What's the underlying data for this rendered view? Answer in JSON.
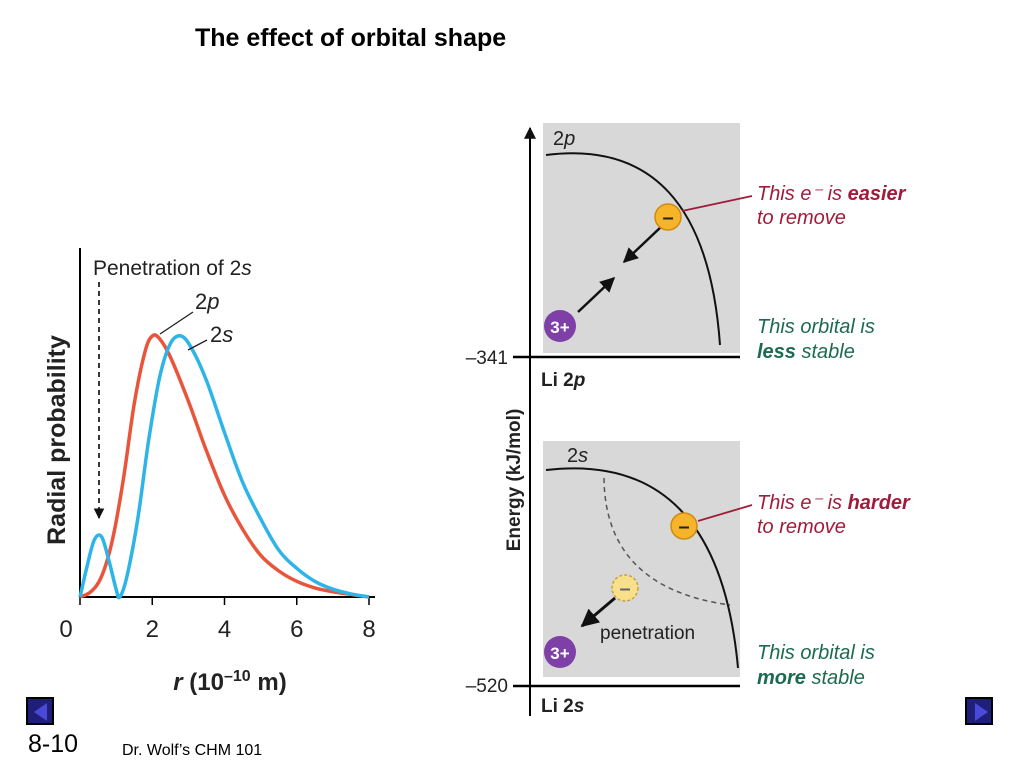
{
  "slide": {
    "title": "The effect of orbital shape",
    "number": "8-10",
    "footer": "Dr. Wolf’s CHM 101"
  },
  "colors": {
    "curve_2p": "#e8553a",
    "curve_2s": "#2fb4e8",
    "panel_bg": "#d8d8d8",
    "electron": "#f5b42a",
    "nucleus": "#7e3fa6",
    "red_text": "#a01c3c",
    "green_text": "#1d6b4e",
    "nav_button": "#1f1f7a"
  },
  "chart_data": [
    {
      "type": "line",
      "title": "",
      "xlabel": "r (10⁻¹⁰ m)",
      "ylabel": "Radial probability",
      "xlim": [
        0,
        8
      ],
      "xticks": [
        "0",
        "2",
        "4",
        "6",
        "8"
      ],
      "annotation": "Penetration of 2s",
      "series": [
        {
          "name": "2p",
          "color_key": "curve_2p",
          "x": [
            0,
            0.3,
            0.6,
            0.9,
            1.2,
            1.5,
            1.8,
            2.0,
            2.2,
            2.5,
            3.0,
            3.5,
            4.0,
            4.5,
            5.0,
            5.5,
            6.0,
            6.5,
            7.0,
            7.5,
            8.0
          ],
          "y": [
            0,
            0.02,
            0.08,
            0.22,
            0.45,
            0.74,
            0.94,
            1.0,
            0.99,
            0.92,
            0.75,
            0.56,
            0.39,
            0.26,
            0.16,
            0.1,
            0.06,
            0.035,
            0.02,
            0.01,
            0.0
          ]
        },
        {
          "name": "2s",
          "color_key": "curve_2s",
          "x": [
            0,
            0.2,
            0.4,
            0.6,
            0.8,
            1.0,
            1.1,
            1.3,
            1.6,
            1.9,
            2.2,
            2.5,
            2.8,
            3.1,
            3.5,
            4.0,
            4.5,
            5.0,
            5.5,
            6.0,
            6.5,
            7.0,
            7.5,
            8.0
          ],
          "y": [
            0,
            0.12,
            0.22,
            0.23,
            0.14,
            0.03,
            0.0,
            0.08,
            0.3,
            0.6,
            0.84,
            0.97,
            1.0,
            0.95,
            0.83,
            0.63,
            0.44,
            0.3,
            0.18,
            0.11,
            0.06,
            0.03,
            0.012,
            0.0
          ]
        }
      ]
    },
    {
      "type": "diagram",
      "ylabel": "Energy (kJ/mol)",
      "levels": [
        {
          "value": -341,
          "tick_label": "–341",
          "orbital": "Li 2p",
          "orbital_main": "Li 2",
          "orbital_letter": "p",
          "panel_label": "2p",
          "remove_text_pre": "This e⁻ is ",
          "remove_text_bold": "easier",
          "remove_text_line2": "to remove",
          "stability_line1": "This orbital is",
          "stability_bold": "less",
          "stability_rest": " stable"
        },
        {
          "value": -520,
          "tick_label": "–520",
          "orbital": "Li 2s",
          "orbital_main": "Li 2",
          "orbital_letter": "s",
          "panel_label": "2s",
          "remove_text_pre": "This e⁻ is ",
          "remove_text_bold": "harder",
          "remove_text_line2": "to remove",
          "stability_line1": "This orbital is",
          "stability_bold": "more",
          "stability_rest": " stable",
          "penetration_label": "penetration"
        }
      ],
      "electron_symbol": "–",
      "nucleus_label": "3+"
    }
  ]
}
